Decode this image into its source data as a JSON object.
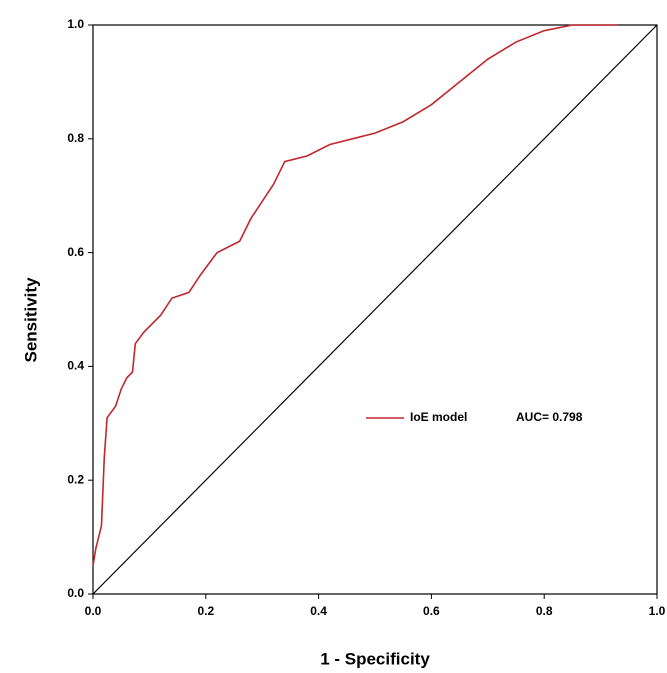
{
  "chart_data": {
    "type": "line",
    "xlabel": "1 - Specificity",
    "ylabel": "Sensitivity",
    "series": [
      {
        "name": "IoE model",
        "color": "#c0282d",
        "x": [
          0.0,
          0.005,
          0.01,
          0.015,
          0.02,
          0.025,
          0.04,
          0.05,
          0.06,
          0.07,
          0.075,
          0.09,
          0.1,
          0.12,
          0.14,
          0.17,
          0.19,
          0.22,
          0.26,
          0.28,
          0.3,
          0.32,
          0.34,
          0.38,
          0.42,
          0.46,
          0.5,
          0.55,
          0.6,
          0.65,
          0.7,
          0.75,
          0.8,
          0.85,
          0.93
        ],
        "y": [
          0.05,
          0.08,
          0.1,
          0.12,
          0.24,
          0.31,
          0.33,
          0.36,
          0.38,
          0.39,
          0.44,
          0.46,
          0.47,
          0.49,
          0.52,
          0.53,
          0.56,
          0.6,
          0.62,
          0.66,
          0.69,
          0.72,
          0.76,
          0.77,
          0.79,
          0.8,
          0.81,
          0.83,
          0.86,
          0.9,
          0.94,
          0.97,
          0.99,
          1.0,
          1.0
        ]
      }
    ],
    "reference_line": {
      "color": "#000000",
      "x": [
        0,
        1
      ],
      "y": [
        0,
        1
      ]
    },
    "annotation": "AUC= 0.798",
    "xlim": [
      0,
      1
    ],
    "ylim": [
      0,
      1
    ],
    "xticks": [
      {
        "value": 0,
        "label": "0.0"
      },
      0.2,
      0.4,
      0.6,
      0.8,
      {
        "value": 1,
        "label": "1.0"
      }
    ],
    "yticks": [
      {
        "value": 0,
        "label": "0.0"
      },
      0.2,
      0.4,
      0.6,
      0.8,
      {
        "value": 1,
        "label": "1.0"
      }
    ]
  }
}
